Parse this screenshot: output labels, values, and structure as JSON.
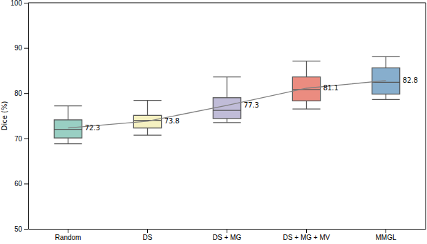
{
  "chart_data": {
    "type": "box",
    "categories": [
      "Random",
      "DS",
      "DS + MG",
      "DS + MG + MV",
      "MMGL"
    ],
    "whisker_low": [
      68.8,
      70.7,
      73.5,
      76.5,
      78.6
    ],
    "q1": [
      70.1,
      72.3,
      74.4,
      78.3,
      79.8
    ],
    "median": [
      72.0,
      74.0,
      76.2,
      80.8,
      82.4
    ],
    "q3": [
      74.1,
      75.1,
      79.0,
      83.6,
      85.6
    ],
    "whisker_high": [
      77.2,
      78.4,
      83.6,
      87.1,
      88.1
    ],
    "mean": [
      72.3,
      73.8,
      77.3,
      81.1,
      82.8
    ],
    "data_labels": true,
    "colors": [
      "#99cfc3",
      "#f5f1c1",
      "#c0bcd8",
      "#eb8c80",
      "#87aecd"
    ],
    "y_label": "Dice (%)",
    "ylim": [
      50,
      100
    ],
    "yticks": [
      50,
      60,
      70,
      80,
      90,
      100
    ]
  }
}
